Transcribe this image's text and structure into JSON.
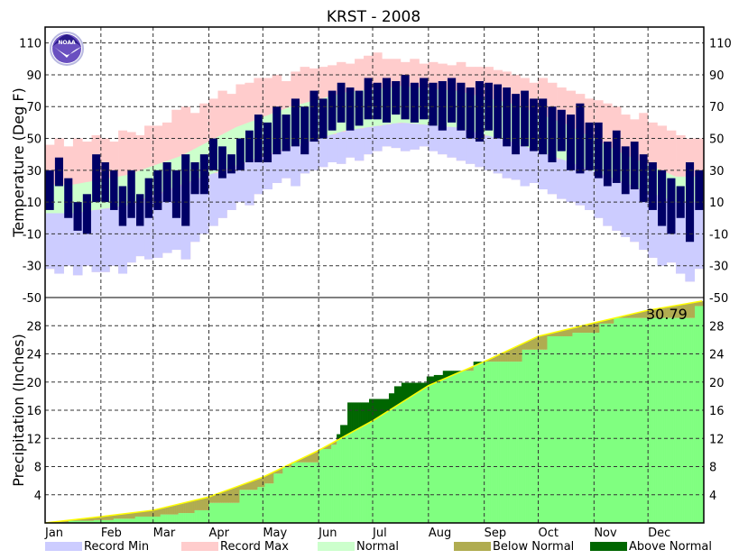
{
  "chart_data": [
    {
      "type": "bar",
      "title": "KRST - 2008",
      "ylabel": "Temperature (Deg F)",
      "ylim": [
        -50,
        120
      ],
      "yticks": [
        "110",
        "90",
        "70",
        "50",
        "30",
        "10",
        "-10",
        "-30",
        "-50"
      ],
      "grid": true,
      "months": [
        "Jan",
        "Feb",
        "Mar",
        "Apr",
        "May",
        "Jun",
        "Jul",
        "Aug",
        "Sep",
        "Oct",
        "Nov",
        "Dec"
      ],
      "normal_high_by_month": [
        21,
        27,
        39,
        57,
        70,
        79,
        83,
        80,
        72,
        59,
        41,
        26
      ],
      "normal_low_by_month": [
        3,
        8,
        21,
        33,
        45,
        55,
        60,
        57,
        48,
        36,
        23,
        10
      ],
      "record_max_by_month": [
        [
          46,
          50,
          45,
          50,
          48,
          52
        ],
        [
          50,
          48,
          55,
          54,
          52,
          58
        ],
        [
          58,
          60,
          68,
          70,
          66,
          72
        ],
        [
          75,
          80,
          78,
          84,
          85,
          88
        ],
        [
          88,
          90,
          86,
          92,
          95,
          94
        ],
        [
          95,
          96,
          98,
          97,
          100,
          102
        ],
        [
          104,
          100,
          100,
          98,
          100,
          97
        ],
        [
          98,
          97,
          96,
          98,
          95,
          95
        ],
        [
          95,
          93,
          92,
          90,
          88,
          85
        ],
        [
          88,
          85,
          82,
          80,
          78,
          75
        ],
        [
          74,
          72,
          70,
          65,
          62,
          66
        ],
        [
          60,
          58,
          55,
          52,
          50,
          50
        ]
      ],
      "record_min_by_month": [
        [
          -32,
          -35,
          -30,
          -36,
          -30,
          -34
        ],
        [
          -34,
          -30,
          -35,
          -28,
          -24,
          -26
        ],
        [
          -25,
          -22,
          -20,
          -26,
          -15,
          -10
        ],
        [
          -5,
          0,
          5,
          10,
          8,
          15
        ],
        [
          18,
          22,
          25,
          20,
          28,
          30
        ],
        [
          32,
          35,
          34,
          38,
          36,
          40
        ],
        [
          42,
          45,
          44,
          42,
          43,
          45
        ],
        [
          42,
          40,
          38,
          36,
          34,
          32
        ],
        [
          30,
          28,
          25,
          24,
          20,
          22
        ],
        [
          18,
          15,
          12,
          10,
          8,
          5
        ],
        [
          0,
          -5,
          -8,
          -12,
          -15,
          -20
        ],
        [
          -25,
          -30,
          -28,
          -35,
          -40,
          -32
        ]
      ],
      "actual_high_by_month": [
        [
          30,
          38,
          25,
          10,
          15,
          40
        ],
        [
          35,
          30,
          20,
          30,
          15,
          25
        ],
        [
          30,
          35,
          30,
          40,
          35,
          40
        ],
        [
          50,
          45,
          40,
          50,
          55,
          65
        ],
        [
          60,
          70,
          65,
          75,
          70,
          80
        ],
        [
          75,
          80,
          85,
          82,
          80,
          88
        ],
        [
          85,
          88,
          86,
          90,
          85,
          88
        ],
        [
          85,
          86,
          88,
          85,
          82,
          86
        ],
        [
          85,
          84,
          82,
          78,
          80,
          75
        ],
        [
          75,
          70,
          68,
          65,
          72,
          60
        ],
        [
          60,
          48,
          55,
          45,
          48,
          40
        ],
        [
          35,
          30,
          25,
          20,
          35,
          30
        ]
      ],
      "actual_low_by_month": [
        [
          5,
          20,
          0,
          -8,
          -10,
          10
        ],
        [
          10,
          5,
          -5,
          0,
          -5,
          0
        ],
        [
          5,
          10,
          0,
          -5,
          15,
          15
        ],
        [
          30,
          25,
          28,
          30,
          35,
          35
        ],
        [
          35,
          40,
          42,
          45,
          40,
          48
        ],
        [
          50,
          55,
          60,
          55,
          58,
          62
        ],
        [
          62,
          60,
          65,
          62,
          60,
          62
        ],
        [
          58,
          55,
          60,
          55,
          50,
          48
        ],
        [
          55,
          50,
          45,
          40,
          45,
          42
        ],
        [
          40,
          35,
          42,
          30,
          28,
          30
        ],
        [
          25,
          20,
          22,
          15,
          18,
          10
        ],
        [
          5,
          -5,
          -10,
          0,
          -15,
          5
        ]
      ]
    },
    {
      "type": "area",
      "ylabel": "Precipitation (Inches)",
      "ylim": [
        0,
        32
      ],
      "yticks": [
        "28",
        "24",
        "20",
        "16",
        "12",
        "8",
        "4"
      ],
      "grid": true,
      "annotation": "30.79",
      "normal_cumulative": [
        [
          "2008-01-01",
          0
        ],
        [
          "2008-02-01",
          0.9
        ],
        [
          "2008-03-01",
          1.8
        ],
        [
          "2008-04-01",
          3.7
        ],
        [
          "2008-05-01",
          6.5
        ],
        [
          "2008-06-01",
          10.3
        ],
        [
          "2008-07-01",
          14.5
        ],
        [
          "2008-08-01",
          19.5
        ],
        [
          "2008-09-01",
          22.9
        ],
        [
          "2008-10-01",
          26.5
        ],
        [
          "2008-11-01",
          28.4
        ],
        [
          "2008-12-01",
          30.2
        ],
        [
          "2008-12-31",
          31.5
        ]
      ],
      "actual_cumulative": [
        [
          "2008-01-01",
          0
        ],
        [
          "2008-01-06",
          0.1
        ],
        [
          "2008-01-14",
          0.3
        ],
        [
          "2008-01-28",
          0.4
        ],
        [
          "2008-02-08",
          0.6
        ],
        [
          "2008-02-20",
          0.9
        ],
        [
          "2008-03-05",
          1.2
        ],
        [
          "2008-03-15",
          1.4
        ],
        [
          "2008-03-24",
          1.8
        ],
        [
          "2008-04-01",
          2.85
        ],
        [
          "2008-04-18",
          4.7
        ],
        [
          "2008-04-28",
          5.1
        ],
        [
          "2008-05-02",
          5.6
        ],
        [
          "2008-05-07",
          7.0
        ],
        [
          "2008-05-12",
          7.9
        ],
        [
          "2008-05-17",
          8.6
        ],
        [
          "2008-06-01",
          10.5
        ],
        [
          "2008-06-08",
          11.1
        ],
        [
          "2008-06-11",
          12.6
        ],
        [
          "2008-06-13",
          13.9
        ],
        [
          "2008-06-17",
          17.1
        ],
        [
          "2008-06-29",
          17.6
        ],
        [
          "2008-07-10",
          18.4
        ],
        [
          "2008-07-13",
          19.4
        ],
        [
          "2008-07-17",
          19.9
        ],
        [
          "2008-07-31",
          20.8
        ],
        [
          "2008-08-04",
          21.0
        ],
        [
          "2008-08-09",
          21.6
        ],
        [
          "2008-08-26",
          22.9
        ],
        [
          "2008-09-22",
          24.6
        ],
        [
          "2008-10-06",
          26.5
        ],
        [
          "2008-10-20",
          27.0
        ],
        [
          "2008-11-04",
          28.3
        ],
        [
          "2008-11-12",
          29.1
        ],
        [
          "2008-12-27",
          30.79
        ]
      ]
    }
  ],
  "legend": [
    {
      "label": "Record Min",
      "color": "#ccccff"
    },
    {
      "label": "Record Max",
      "color": "#ffcccc"
    },
    {
      "label": "Normal",
      "color": "#ccffcc"
    },
    {
      "label": "Below Normal",
      "color": "#b0ac50"
    },
    {
      "label": "Above Normal",
      "color": "#006600"
    }
  ],
  "colors": {
    "actual_temp": "#000066",
    "precip_fill": "#80ff80",
    "normal_line": "#ffff00"
  },
  "logo": "NOAA"
}
